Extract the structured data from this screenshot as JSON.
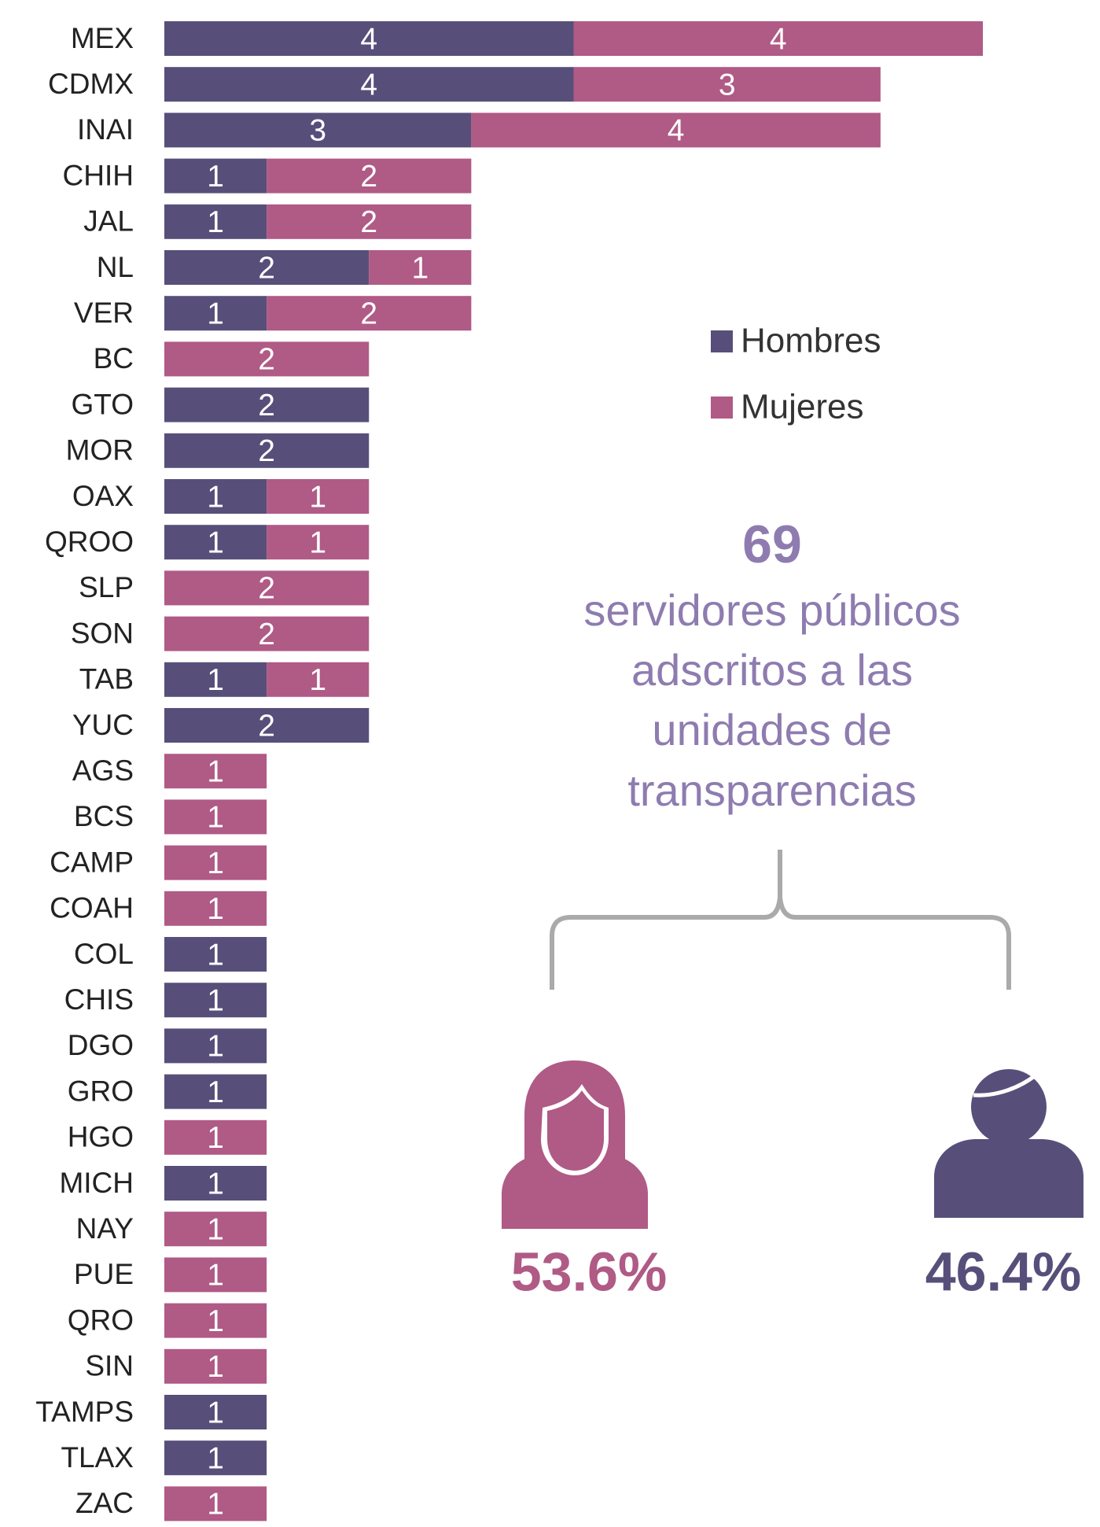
{
  "chart_data": {
    "type": "stacked-barh",
    "categories": [
      "MEX",
      "CDMX",
      "INAI",
      "CHIH",
      "JAL",
      "NL",
      "VER",
      "BC",
      "GTO",
      "MOR",
      "OAX",
      "QROO",
      "SLP",
      "SON",
      "TAB",
      "YUC",
      "AGS",
      "BCS",
      "CAMP",
      "COAH",
      "COL",
      "CHIS",
      "DGO",
      "GRO",
      "HGO",
      "MICH",
      "NAY",
      "PUE",
      "QRO",
      "SIN",
      "TAMPS",
      "TLAX",
      "ZAC"
    ],
    "series": [
      {
        "name": "Hombres",
        "color": "#574f7a",
        "values": [
          4,
          4,
          3,
          1,
          1,
          2,
          1,
          null,
          2,
          2,
          1,
          1,
          null,
          null,
          1,
          2,
          null,
          null,
          null,
          null,
          1,
          1,
          1,
          1,
          null,
          1,
          null,
          null,
          null,
          null,
          1,
          1,
          null
        ]
      },
      {
        "name": "Mujeres",
        "color": "#b05a86",
        "values": [
          4,
          3,
          4,
          2,
          2,
          1,
          2,
          2,
          null,
          null,
          1,
          1,
          2,
          2,
          1,
          null,
          1,
          1,
          1,
          1,
          null,
          null,
          null,
          null,
          1,
          null,
          1,
          1,
          1,
          1,
          null,
          null,
          1
        ]
      }
    ],
    "xlim": [
      0,
      8
    ],
    "annotations": {
      "total": "69",
      "description": [
        "servidores públicos",
        "adscritos a las",
        "unidades de",
        "transparencias"
      ],
      "women_share": "53.6%",
      "men_share": "46.4%"
    }
  }
}
